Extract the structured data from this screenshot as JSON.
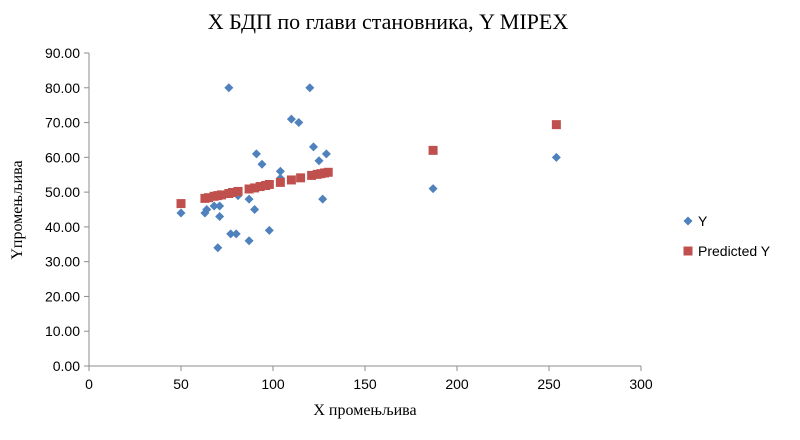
{
  "chart_data": {
    "type": "scatter",
    "title": "X БДП по глави становника, Y MIPEX",
    "xlabel": "X промењљива",
    "ylabel": "Yпромењљива",
    "xlim": [
      0,
      300
    ],
    "ylim": [
      0,
      90
    ],
    "x_ticks": [
      "0",
      "50",
      "100",
      "150",
      "200",
      "250",
      "300"
    ],
    "y_ticks": [
      "0.00",
      "10.00",
      "20.00",
      "30.00",
      "40.00",
      "50.00",
      "60.00",
      "70.00",
      "80.00",
      "90.00"
    ],
    "grid": false,
    "legend_position": "right",
    "series": [
      {
        "name": "Y",
        "marker": "diamond",
        "color": "#4f81bd",
        "points": [
          [
            50,
            44
          ],
          [
            63,
            44
          ],
          [
            64,
            45
          ],
          [
            68,
            46
          ],
          [
            71,
            46
          ],
          [
            71,
            43
          ],
          [
            70,
            34
          ],
          [
            76,
            80
          ],
          [
            77,
            38
          ],
          [
            80,
            38
          ],
          [
            81,
            49
          ],
          [
            87,
            48
          ],
          [
            87,
            36
          ],
          [
            90,
            45
          ],
          [
            91,
            61
          ],
          [
            94,
            58
          ],
          [
            98,
            39
          ],
          [
            104,
            56
          ],
          [
            104,
            54
          ],
          [
            110,
            71
          ],
          [
            114,
            70
          ],
          [
            120,
            80
          ],
          [
            122,
            63
          ],
          [
            125,
            59
          ],
          [
            127,
            48
          ],
          [
            129,
            61
          ],
          [
            187,
            51
          ],
          [
            254,
            60
          ]
        ]
      },
      {
        "name": "Predicted Y",
        "marker": "square",
        "color": "#c0504d",
        "points": [
          [
            50,
            46.7
          ],
          [
            63,
            48.2
          ],
          [
            65,
            48.4
          ],
          [
            68,
            48.8
          ],
          [
            70,
            49.0
          ],
          [
            72,
            49.2
          ],
          [
            76,
            49.6
          ],
          [
            78,
            49.9
          ],
          [
            81,
            50.2
          ],
          [
            87,
            50.9
          ],
          [
            90,
            51.2
          ],
          [
            93,
            51.6
          ],
          [
            96,
            51.9
          ],
          [
            98,
            52.2
          ],
          [
            104,
            52.8
          ],
          [
            110,
            53.5
          ],
          [
            115,
            54.1
          ],
          [
            121,
            54.8
          ],
          [
            124,
            55.1
          ],
          [
            126,
            55.3
          ],
          [
            128,
            55.5
          ],
          [
            130,
            55.7
          ],
          [
            187,
            62.0
          ],
          [
            254,
            69.4
          ]
        ]
      }
    ]
  }
}
